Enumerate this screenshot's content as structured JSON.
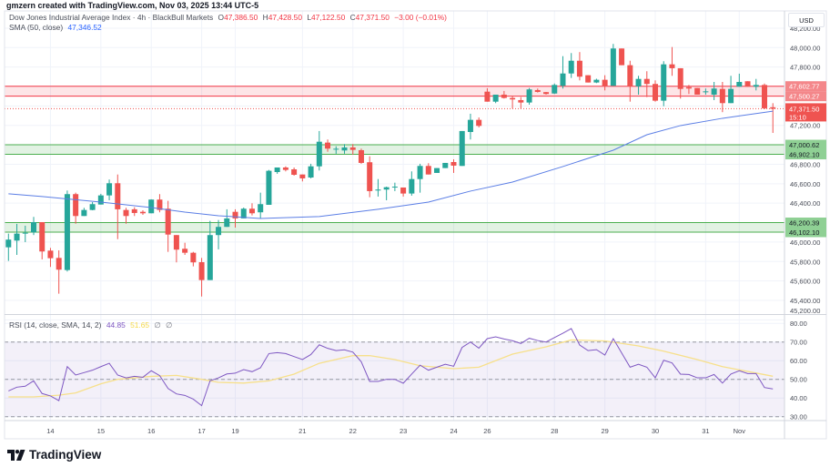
{
  "credit": "gmzern created with TradingView.com, Nov 03, 2025 13:44 UTC-5",
  "legend": {
    "symbol": "Dow Jones Industrial Average Index · 4h · BlackBull Markets",
    "open_label": "O",
    "open": "47,386.50",
    "high_label": "H",
    "high": "47,428.50",
    "low_label": "L",
    "low": "47,122.50",
    "close_label": "C",
    "close": "47,371.50",
    "change": "−3.00 (−0.01%)",
    "sma_label": "SMA (50, close)",
    "sma_value": "47,346.52"
  },
  "rsi_legend": {
    "label": "RSI (14, close, SMA, 14, 2)",
    "rsi_value": "44.85",
    "sma_value": "51.65",
    "extra1": "∅",
    "extra2": "∅"
  },
  "price_axis": {
    "currency": "USD",
    "ticks": [
      "48,200.00",
      "48,000.00",
      "47,800.00",
      "47,200.00",
      "46,800.00",
      "46,600.00",
      "46,400.00",
      "46,000.00",
      "45,800.00",
      "45,600.00",
      "45,400.00",
      "45,200.00"
    ]
  },
  "rsi_axis": {
    "ticks": [
      "80.00",
      "70.00",
      "60.00",
      "50.00",
      "40.00",
      "30.00"
    ]
  },
  "last_price": {
    "label": "47,371.50",
    "countdown": "15:10",
    "value": 47371.5
  },
  "zones": [
    {
      "top": 47602.77,
      "bottom": 47500.27,
      "top_label": "47,602.77",
      "bottom_label": "47,500.27",
      "kind": "resistance",
      "color": "#f23645"
    },
    {
      "top": 47000.62,
      "bottom": 46902.1,
      "top_label": "47,000.62",
      "bottom_label": "46,902.10",
      "kind": "support",
      "color": "#4caf50"
    },
    {
      "top": 46200.39,
      "bottom": 46102.1,
      "top_label": "46,200.39",
      "bottom_label": "46,102.10",
      "kind": "support",
      "color": "#4caf50"
    }
  ],
  "time_axis": [
    {
      "label": "14",
      "bar": 5
    },
    {
      "label": "15",
      "bar": 11
    },
    {
      "label": "16",
      "bar": 17
    },
    {
      "label": "17",
      "bar": 23
    },
    {
      "label": "19",
      "bar": 27
    },
    {
      "label": "21",
      "bar": 35
    },
    {
      "label": "22",
      "bar": 41
    },
    {
      "label": "23",
      "bar": 47
    },
    {
      "label": "24",
      "bar": 53
    },
    {
      "label": "26",
      "bar": 57
    },
    {
      "label": "28",
      "bar": 65
    },
    {
      "label": "29",
      "bar": 71
    },
    {
      "label": "30",
      "bar": 77
    },
    {
      "label": "31",
      "bar": 83
    },
    {
      "label": "Nov",
      "bar": 87
    }
  ],
  "brand": "TradingView",
  "colors": {
    "up": "#26a69a",
    "down": "#ef5350",
    "sma": "#5b7ee5",
    "rsi": "#7e57c2",
    "rsi_sma": "#f7e08a"
  },
  "chart_data": {
    "type": "candlestick",
    "interval": "4h",
    "ylim": [
      45200,
      48250
    ],
    "grid": true,
    "candles_ohlc": [
      [
        45946,
        46087,
        45806,
        46025
      ],
      [
        46015,
        46187,
        45868,
        46087
      ],
      [
        46087,
        46168,
        45999,
        46096
      ],
      [
        46100,
        46259,
        46072,
        46205
      ],
      [
        46205,
        46205,
        45822,
        45903
      ],
      [
        45912,
        45940,
        45744,
        45834
      ],
      [
        45837,
        45915,
        45469,
        45716
      ],
      [
        45712,
        46530,
        45697,
        46493
      ],
      [
        46493,
        46508,
        46189,
        46268
      ],
      [
        46268,
        46352,
        46268,
        46330
      ],
      [
        46330,
        46411,
        46327,
        46390
      ],
      [
        46386,
        46496,
        46386,
        46480
      ],
      [
        46480,
        46643,
        46430,
        46605
      ],
      [
        46605,
        46695,
        46030,
        46337
      ],
      [
        46330,
        46352,
        46189,
        46268
      ],
      [
        46337,
        46358,
        46268,
        46299
      ],
      [
        46311,
        46327,
        46280,
        46296
      ],
      [
        46296,
        46440,
        46296,
        46437
      ],
      [
        46437,
        46493,
        46306,
        46330
      ],
      [
        46343,
        46424,
        45899,
        46077
      ],
      [
        46072,
        46072,
        45791,
        45922
      ],
      [
        45931,
        45993,
        45868,
        45890
      ],
      [
        45890,
        45899,
        45750,
        45791
      ],
      [
        45793,
        45837,
        45440,
        45609
      ],
      [
        45609,
        46218,
        45609,
        46072
      ],
      [
        46072,
        46227,
        45925,
        46156
      ],
      [
        46156,
        46337,
        46156,
        46243
      ],
      [
        46311,
        46337,
        46149,
        46243
      ],
      [
        46243,
        46355,
        46243,
        46343
      ],
      [
        46343,
        46399,
        46274,
        46296
      ],
      [
        46306,
        46508,
        46243,
        46390
      ],
      [
        46383,
        46742,
        46383,
        46733
      ],
      [
        46720,
        46767,
        46702,
        46767
      ],
      [
        46767,
        46779,
        46727,
        46742
      ],
      [
        46748,
        46767,
        46683,
        46692
      ],
      [
        46695,
        46695,
        46624,
        46655
      ],
      [
        46664,
        46805,
        46655,
        46779
      ],
      [
        46779,
        47142,
        46736,
        47032
      ],
      [
        47023,
        47055,
        46929,
        46961
      ],
      [
        46954,
        46985,
        46908,
        46960
      ],
      [
        46942,
        47008,
        46908,
        46973
      ],
      [
        46973,
        47008,
        46898,
        46948
      ],
      [
        46945,
        46961,
        46805,
        46814
      ],
      [
        46821,
        46882,
        46461,
        46524
      ],
      [
        46530,
        46648,
        46468,
        46540
      ],
      [
        46540,
        46570,
        46430,
        46564
      ],
      [
        46564,
        46611,
        46524,
        46570
      ],
      [
        46561,
        46561,
        46468,
        46499
      ],
      [
        46499,
        46727,
        46477,
        46648
      ],
      [
        46648,
        46805,
        46508,
        46783
      ],
      [
        46783,
        46811,
        46695,
        46695
      ],
      [
        46711,
        46761,
        46711,
        46761
      ],
      [
        46761,
        46814,
        46761,
        46814
      ],
      [
        46823,
        46851,
        46711,
        46786
      ],
      [
        46783,
        47142,
        46783,
        47142
      ],
      [
        47132,
        47320,
        47055,
        47257
      ],
      [
        47257,
        47282,
        47179,
        47195
      ],
      [
        47547,
        47582,
        47444,
        47444
      ],
      [
        47444,
        47516,
        47429,
        47516
      ],
      [
        47516,
        47554,
        47476,
        47482
      ],
      [
        47482,
        47507,
        47373,
        47467
      ],
      [
        47460,
        47491,
        47373,
        47435
      ],
      [
        47435,
        47585,
        47413,
        47570
      ],
      [
        47563,
        47579,
        47538,
        47544
      ],
      [
        47542,
        47544,
        47516,
        47523
      ],
      [
        47528,
        47631,
        47523,
        47616
      ],
      [
        47607,
        47912,
        47579,
        47734
      ],
      [
        47734,
        47944,
        47688,
        47865
      ],
      [
        47865,
        47954,
        47663,
        47701
      ],
      [
        47716,
        47716,
        47641,
        47641
      ],
      [
        47641,
        47680,
        47635,
        47669
      ],
      [
        47669,
        47716,
        47560,
        47607
      ],
      [
        47607,
        48038,
        47607,
        47991
      ],
      [
        47991,
        47991,
        47819,
        47819
      ],
      [
        47819,
        47865,
        47444,
        47601
      ],
      [
        47601,
        47710,
        47516,
        47678
      ],
      [
        47678,
        47757,
        47491,
        47626
      ],
      [
        47626,
        47663,
        47444,
        47454
      ],
      [
        47454,
        47860,
        47397,
        47828
      ],
      [
        47828,
        48006,
        47710,
        47788
      ],
      [
        47788,
        47788,
        47476,
        47575
      ],
      [
        47594,
        47616,
        47523,
        47579
      ],
      [
        47585,
        47585,
        47516,
        47516
      ],
      [
        47547,
        47579,
        47516,
        47550
      ],
      [
        47516,
        47647,
        47460,
        47579
      ],
      [
        47575,
        47647,
        47336,
        47429
      ],
      [
        47429,
        47710,
        47429,
        47575
      ],
      [
        47598,
        47732,
        47598,
        47647
      ],
      [
        47654,
        47654,
        47598,
        47598
      ],
      [
        47598,
        47678,
        47560,
        47616
      ],
      [
        47616,
        47631,
        47366,
        47376
      ],
      [
        47386.5,
        47428.5,
        47122.5,
        47371.5
      ]
    ],
    "sma50_points": [
      [
        0,
        46496
      ],
      [
        4,
        46468
      ],
      [
        11,
        46411
      ],
      [
        17,
        46355
      ],
      [
        21,
        46308
      ],
      [
        25,
        46271
      ],
      [
        30,
        46243
      ],
      [
        37,
        46262
      ],
      [
        44,
        46337
      ],
      [
        50,
        46411
      ],
      [
        55,
        46524
      ],
      [
        60,
        46617
      ],
      [
        66,
        46777
      ],
      [
        72,
        46945
      ],
      [
        76,
        47104
      ],
      [
        80,
        47198
      ],
      [
        85,
        47273
      ],
      [
        91,
        47346.52
      ]
    ],
    "rsi": {
      "ylim": [
        25,
        82
      ],
      "levels": [
        70,
        50,
        30
      ],
      "values": [
        43.8,
        45.8,
        46.3,
        49.2,
        42.4,
        41.1,
        38.6,
        56.8,
        52.3,
        53.6,
        54.9,
        56.8,
        58.6,
        52.3,
        50.8,
        51.6,
        51.1,
        54.6,
        52,
        45.1,
        42.2,
        41.4,
        39.4,
        35.9,
        49.2,
        50.8,
        52.9,
        53.3,
        55.2,
        54.1,
        56.2,
        63.8,
        64.3,
        63.8,
        62.2,
        60.6,
        63.3,
        68.5,
        66.6,
        65.4,
        65.8,
        64.6,
        59.4,
        48.9,
        48.9,
        50,
        50,
        47.9,
        52.8,
        57.6,
        54.9,
        56.5,
        58.1,
        57,
        67.1,
        70,
        66.7,
        71.8,
        72.8,
        71.6,
        70.7,
        69.2,
        72,
        70.8,
        70,
        72.4,
        74.7,
        77.2,
        68.4,
        65.4,
        65.9,
        63,
        71.8,
        64.1,
        56.5,
        58.1,
        56.5,
        50.8,
        60.2,
        58.8,
        52.8,
        52.6,
        50.8,
        50.8,
        52.6,
        48,
        52.8,
        54.6,
        53.1,
        53.1,
        45.6,
        44.85
      ],
      "sma_points": [
        [
          0,
          40.6
        ],
        [
          3,
          40.6
        ],
        [
          6,
          41.5
        ],
        [
          8,
          42.7
        ],
        [
          11,
          47.6
        ],
        [
          13,
          50
        ],
        [
          17,
          51.6
        ],
        [
          20,
          52.1
        ],
        [
          23,
          50
        ],
        [
          25,
          48.4
        ],
        [
          28,
          48
        ],
        [
          31,
          49.2
        ],
        [
          34,
          52.8
        ],
        [
          37,
          58.6
        ],
        [
          41,
          62.7
        ],
        [
          43,
          62.7
        ],
        [
          46,
          60.6
        ],
        [
          49,
          57.3
        ],
        [
          53,
          55.7
        ],
        [
          56,
          56.5
        ],
        [
          60,
          63.5
        ],
        [
          64,
          67.4
        ],
        [
          67,
          71.1
        ],
        [
          71,
          70.6
        ],
        [
          75,
          67.9
        ],
        [
          78,
          65.1
        ],
        [
          82,
          60.6
        ],
        [
          85,
          56.8
        ],
        [
          91,
          51.65
        ]
      ]
    }
  }
}
